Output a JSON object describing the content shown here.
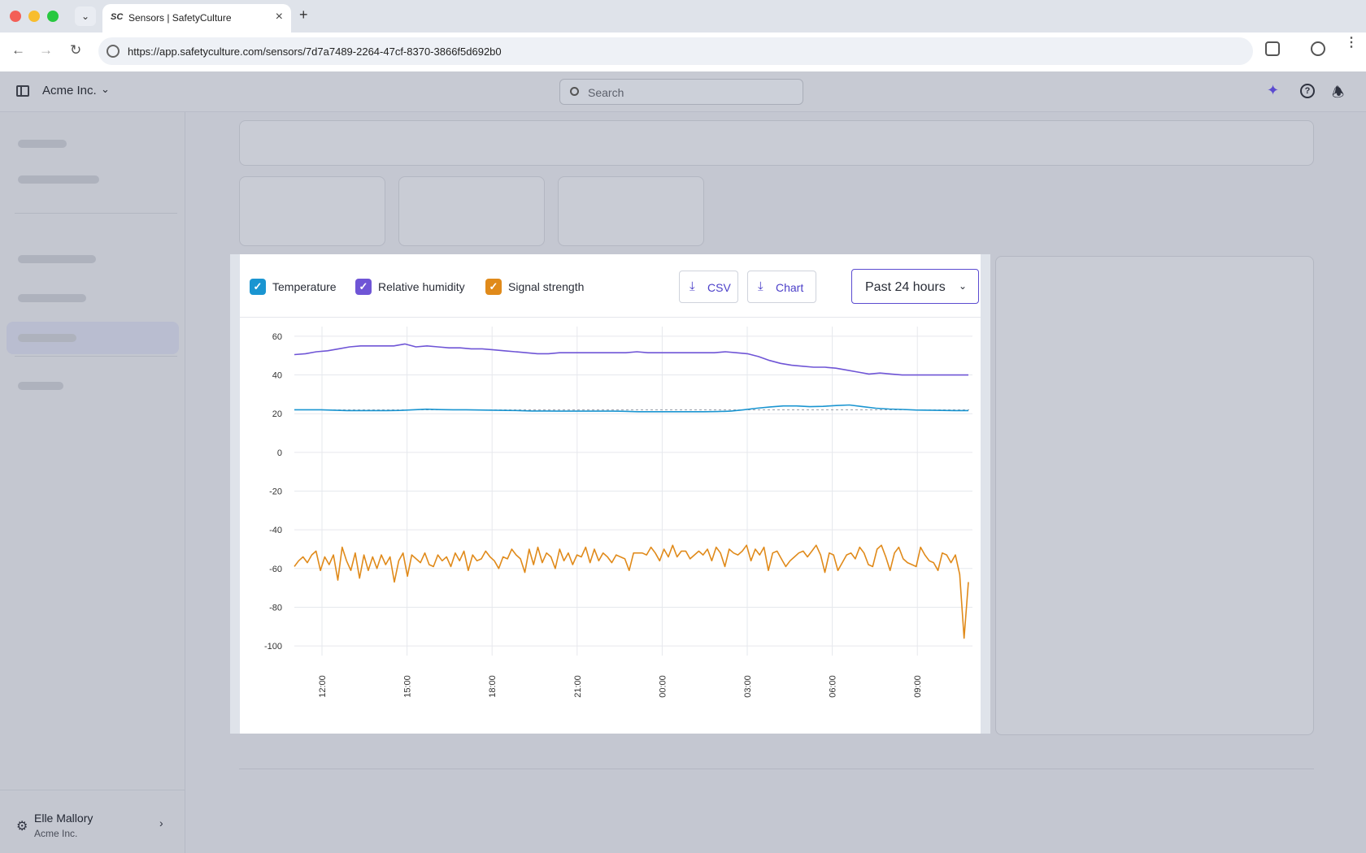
{
  "browser": {
    "tab_title": "Sensors | SafetyCulture",
    "tab_favicon": "SC",
    "url": "https://app.safetyculture.com/sensors/7d7a7489-2264-47cf-8370-3866f5d692b0"
  },
  "header": {
    "org_name": "Acme Inc.",
    "search_placeholder": "Search"
  },
  "sidebar": {
    "user_name": "Elle Mallory",
    "user_org": "Acme Inc."
  },
  "modal": {
    "legend": [
      {
        "label": "Temperature",
        "color": "#1a95d1"
      },
      {
        "label": "Relative humidity",
        "color": "#6f55d6"
      },
      {
        "label": "Signal strength",
        "color": "#e08a1a"
      }
    ],
    "csv_label": "CSV",
    "chart_label": "Chart",
    "range_label": "Past 24 hours"
  },
  "chart_data": {
    "type": "line",
    "y_ticks": [
      60,
      40,
      20,
      0,
      -20,
      -40,
      -60,
      -80,
      -100
    ],
    "x_ticks": [
      "12:00",
      "15:00",
      "18:00",
      "21:00",
      "00:00",
      "03:00",
      "06:00",
      "09:00"
    ],
    "ylim": [
      -105,
      65
    ],
    "grid": true,
    "series": [
      {
        "name": "Relative humidity",
        "color": "#6f55d6",
        "values": [
          50.5,
          51,
          52,
          52.5,
          53.5,
          54.5,
          55,
          55,
          55,
          55,
          56,
          54.5,
          55,
          54.5,
          54,
          54,
          53.5,
          53.5,
          53,
          52.5,
          52,
          51.5,
          51,
          51,
          51.5,
          51.5,
          51.5,
          51.5,
          51.5,
          51.5,
          51.5,
          52,
          51.5,
          51.5,
          51.5,
          51.5,
          51.5,
          51.5,
          51.5,
          52,
          51.5,
          51,
          49.5,
          47.5,
          46,
          45,
          44.5,
          44,
          44,
          43.5,
          42.5,
          41.5,
          40.5,
          41,
          40.5,
          40,
          40,
          40,
          40,
          40,
          40,
          40
        ]
      },
      {
        "name": "Temperature",
        "color": "#1a95d1",
        "values": [
          22,
          22,
          22,
          21.8,
          21.6,
          21.6,
          21.6,
          21.6,
          21.7,
          22,
          22.3,
          22.1,
          22,
          22,
          21.9,
          21.8,
          21.7,
          21.6,
          21.4,
          21.4,
          21.3,
          21.3,
          21.3,
          21.3,
          21.3,
          21.2,
          21,
          21,
          21,
          21,
          21,
          21,
          21.1,
          21.3,
          22,
          22.8,
          23.5,
          24,
          24,
          23.6,
          23.8,
          24.2,
          24.5,
          23.6,
          22.8,
          22.4,
          22.2,
          21.9,
          21.8,
          21.7,
          21.6,
          21.6
        ]
      },
      {
        "name": "Signal strength",
        "color": "#e08a1a",
        "values": [
          -59,
          -56,
          -54,
          -57,
          -53,
          -51,
          -61,
          -54,
          -58,
          -53,
          -66,
          -49,
          -56,
          -61,
          -52,
          -65,
          -53,
          -61,
          -54,
          -60,
          -53,
          -58,
          -54,
          -67,
          -56,
          -52,
          -64,
          -53,
          -55,
          -57,
          -52,
          -58,
          -59,
          -53,
          -56,
          -54,
          -59,
          -52,
          -56,
          -51,
          -61,
          -53,
          -56,
          -55,
          -51,
          -54,
          -56,
          -60,
          -54,
          -55,
          -50,
          -53,
          -55,
          -62,
          -50,
          -58,
          -49,
          -57,
          -52,
          -54,
          -60,
          -50,
          -56,
          -52,
          -58,
          -53,
          -54,
          -49,
          -57,
          -50,
          -56,
          -52,
          -54,
          -57,
          -53,
          -54,
          -55,
          -61,
          -52,
          -52,
          -52,
          -53,
          -49,
          -52,
          -56,
          -50,
          -54,
          -48,
          -54,
          -51,
          -51,
          -55,
          -53,
          -51,
          -53,
          -50,
          -56,
          -49,
          -52,
          -59,
          -50,
          -52,
          -53,
          -51,
          -48,
          -56,
          -50,
          -53,
          -49,
          -61,
          -52,
          -51,
          -55,
          -59,
          -56,
          -54,
          -52,
          -51,
          -54,
          -51,
          -48,
          -53,
          -62,
          -52,
          -53,
          -61,
          -57,
          -53,
          -52,
          -55,
          -49,
          -52,
          -58,
          -59,
          -50,
          -48,
          -54,
          -61,
          -52,
          -49,
          -55,
          -57,
          -58,
          -59,
          -49,
          -53,
          -56,
          -57,
          -61,
          -52,
          -53,
          -57,
          -53,
          -63,
          -96,
          -67
        ]
      }
    ],
    "reference_line": 22
  }
}
